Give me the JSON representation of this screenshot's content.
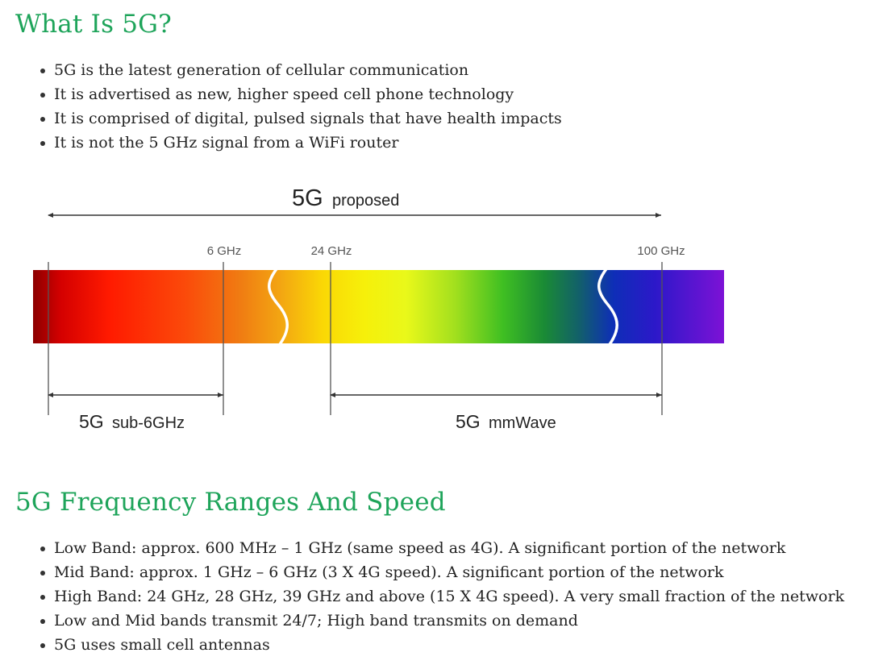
{
  "section1": {
    "title": "What Is 5G?",
    "bullets": [
      "5G is the latest generation of cellular communication",
      "It is advertised as new, higher speed cell phone technology",
      "It is comprised of digital, pulsed signals that have health impacts",
      "It is not the 5 GHz signal from a WiFi router"
    ]
  },
  "diagram": {
    "top_label_main": "5G",
    "top_label_sub": "proposed",
    "ticks": [
      "6 GHz",
      "24 GHz",
      "100 GHz"
    ],
    "left_label_main": "5G",
    "left_label_sub": "sub-6GHz",
    "right_label_main": "5G",
    "right_label_sub": "mmWave"
  },
  "section2": {
    "title": "5G Frequency Ranges And Speed",
    "bullets": [
      "Low Band: approx. 600 MHz – 1 GHz (same speed as 4G). A significant portion of the network",
      "Mid Band: approx. 1 GHz – 6 GHz (3 X 4G speed). A significant portion of the network",
      "High Band: 24 GHz, 28 GHz, 39 GHz and above (15 X 4G speed). A very small fraction of the network",
      "Low and Mid bands transmit 24/7; High band transmits on demand",
      "5G uses small cell antennas"
    ]
  },
  "colors": {
    "heading": "#1ea45a",
    "text": "#222222"
  }
}
